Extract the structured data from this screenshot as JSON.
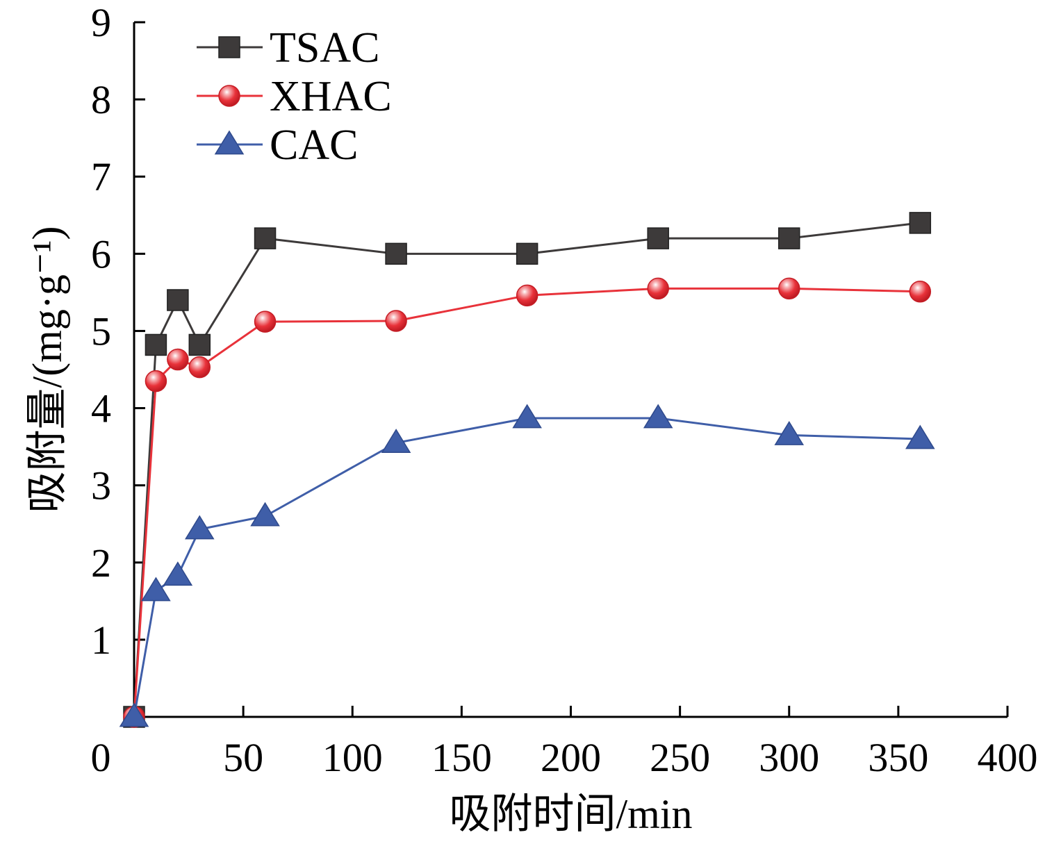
{
  "chart_data": {
    "type": "line",
    "title": "",
    "xlabel": "吸附时间/min",
    "ylabel": "吸附量/(mg·g⁻¹)",
    "xlim": [
      0,
      400
    ],
    "ylim": [
      0,
      9
    ],
    "x_ticks": [
      "0",
      "50",
      "100",
      "150",
      "200",
      "250",
      "300",
      "350",
      "400"
    ],
    "y_ticks": [
      "1",
      "2",
      "3",
      "4",
      "5",
      "6",
      "7",
      "8",
      "9"
    ],
    "grid": false,
    "legend_position": "top-left",
    "x": [
      0,
      10,
      20,
      30,
      60,
      120,
      180,
      240,
      300,
      360
    ],
    "series": [
      {
        "name": "TSAC",
        "marker": "square",
        "color": "#3d3a3a",
        "values": [
          0,
          4.82,
          5.4,
          4.82,
          6.2,
          6.0,
          6.0,
          6.2,
          6.2,
          6.4
        ]
      },
      {
        "name": "XHAC",
        "marker": "circle",
        "color": "#e8323a",
        "values": [
          0,
          4.35,
          4.63,
          4.53,
          5.12,
          5.13,
          5.46,
          5.55,
          5.55,
          5.51
        ]
      },
      {
        "name": "CAC",
        "marker": "triangle",
        "color": "#3f5ea8",
        "values": [
          0,
          1.63,
          1.83,
          2.43,
          2.6,
          3.55,
          3.87,
          3.87,
          3.65,
          3.6
        ]
      }
    ]
  }
}
